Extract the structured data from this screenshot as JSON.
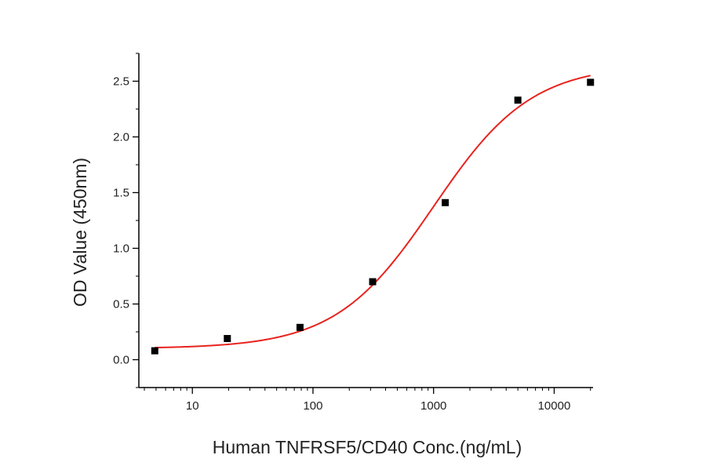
{
  "chart_data": {
    "type": "scatter",
    "title": "",
    "xlabel": "Human TNFRSF5/CD40 Conc.(ng/mL)",
    "ylabel": "OD Value (450nm)",
    "xscale": "log",
    "xlim": [
      3.6,
      21000
    ],
    "ylim": [
      -0.25,
      2.75
    ],
    "grid": false,
    "legend": "none",
    "x_ticks": [
      10,
      100,
      1000,
      10000
    ],
    "x_tick_labels": [
      "10",
      "100",
      "1000",
      "10000"
    ],
    "y_ticks": [
      0,
      0.5,
      1,
      1.5,
      2,
      2.5
    ],
    "y_tick_labels": [
      "0.0",
      "0.5",
      "1.0",
      "1.5",
      "2.0",
      "2.5"
    ],
    "series": [
      {
        "type": "scatter",
        "color": "#000000",
        "x": [
          4.88,
          19.5,
          78.1,
          312.5,
          1250,
          5000,
          20000
        ],
        "y": [
          0.08,
          0.19,
          0.29,
          0.7,
          1.41,
          2.33,
          2.49
        ]
      },
      {
        "type": "fit-curve",
        "model": "4PL",
        "color": "#e8231f",
        "params": {
          "bottom": 0.1,
          "top": 2.65,
          "ec50": 1000,
          "hill": 1.07
        },
        "x_range": [
          4.88,
          20000
        ]
      }
    ]
  }
}
